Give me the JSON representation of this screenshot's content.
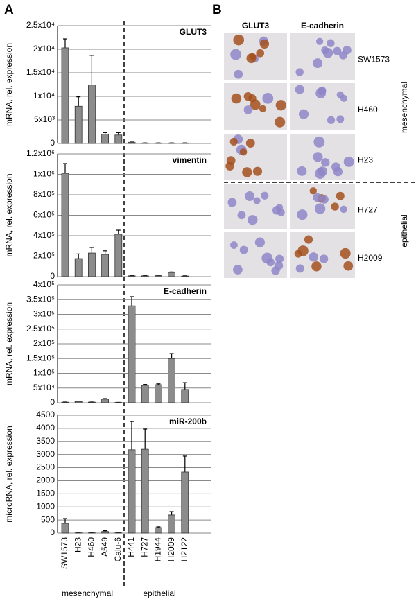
{
  "panel_labels": [
    "A",
    "B"
  ],
  "group_labels": [
    "mesenchymal",
    "epithelial"
  ],
  "chart_data": [
    {
      "type": "bar",
      "title": "GLUT3",
      "ylabel": "mRNA, rel. expression",
      "color": "#8c8c8c",
      "values": [
        20300,
        7900,
        12400,
        2000,
        1800,
        250,
        100,
        100,
        100,
        100
      ],
      "errors": [
        1900,
        2000,
        6300,
        300,
        500,
        50,
        20,
        20,
        20,
        20
      ],
      "ylim": [
        0,
        25000
      ],
      "yticks": [
        0,
        {
          "value": 5000,
          "label": "5x10³"
        },
        {
          "value": 10000,
          "label": "1x10⁴"
        },
        {
          "value": 15000,
          "label": "1.5x10⁴"
        },
        {
          "value": 20000,
          "label": "2x10⁴"
        },
        {
          "value": 25000,
          "label": "2.5x10⁴"
        }
      ],
      "grid": true
    },
    {
      "type": "bar",
      "title": "vimentin",
      "ylabel": "mRNA, rel. expression",
      "color": "#8c8c8c",
      "values": [
        1010000,
        176000,
        230000,
        217000,
        414000,
        8000,
        8000,
        10000,
        40000,
        6000
      ],
      "errors": [
        95000,
        45000,
        55000,
        35000,
        40000,
        2000,
        2000,
        2000,
        5000,
        2000
      ],
      "ylim": [
        0,
        1200000
      ],
      "yticks": [
        0,
        {
          "value": 200000,
          "label": "2x10⁵"
        },
        {
          "value": 400000,
          "label": "4x10⁵"
        },
        {
          "value": 600000,
          "label": "6x10⁵"
        },
        {
          "value": 800000,
          "label": "8x10⁵"
        },
        {
          "value": 1000000,
          "label": "1x10⁶"
        },
        {
          "value": 1200000,
          "label": "1.2x10⁶"
        }
      ],
      "grid": true
    },
    {
      "type": "bar",
      "title": "E-cadherin",
      "ylabel": "mRNA, rel. expression",
      "color": "#8c8c8c",
      "values": [
        2000,
        4000,
        2000,
        12000,
        1000,
        329000,
        59000,
        61000,
        150000,
        45000
      ],
      "errors": [
        500,
        1500,
        500,
        2000,
        300,
        31000,
        3000,
        3000,
        17000,
        23000
      ],
      "ylim": [
        0,
        400000
      ],
      "yticks": [
        0,
        {
          "value": 50000,
          "label": "5x10⁴"
        },
        {
          "value": 100000,
          "label": "1x10⁵"
        },
        {
          "value": 150000,
          "label": "1.5x10⁵"
        },
        {
          "value": 200000,
          "label": "2x10⁵"
        },
        {
          "value": 250000,
          "label": "2.5x10⁵"
        },
        {
          "value": 300000,
          "label": "3x10⁵"
        },
        {
          "value": 350000,
          "label": "3.5x10⁵"
        },
        {
          "value": 400000,
          "label": "4x10⁵"
        }
      ],
      "grid": true
    },
    {
      "type": "bar",
      "title": "miR-200b",
      "ylabel": "microRNA, rel. expression",
      "color": "#8c8c8c",
      "categories": [
        "SW1573",
        "H23",
        "H460",
        "A549",
        "Calu-6",
        "H441",
        "H727",
        "H1944",
        "H2009",
        "H2122"
      ],
      "values": [
        370,
        10,
        10,
        60,
        10,
        3180,
        3200,
        210,
        690,
        2330
      ],
      "errors": [
        185,
        5,
        5,
        30,
        5,
        1080,
        770,
        30,
        130,
        610
      ],
      "ylim": [
        0,
        4500
      ],
      "yticks": [
        0,
        500,
        1000,
        1500,
        2000,
        2500,
        3000,
        3500,
        4000,
        4500
      ],
      "grid": true
    }
  ],
  "panel_b": {
    "columns": [
      "GLUT3",
      "E-cadherin"
    ],
    "rows": [
      "SW1573",
      "H460",
      "H23",
      "H727",
      "H2009"
    ],
    "groups": [
      "mesenchymal",
      "epithelial"
    ]
  }
}
